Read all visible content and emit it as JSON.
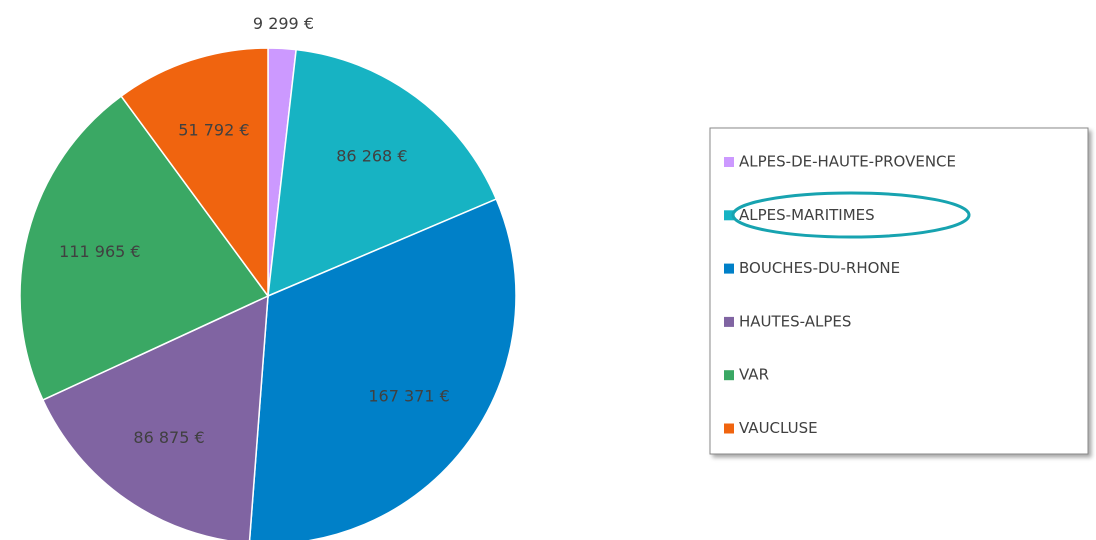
{
  "chart_data": {
    "type": "pie",
    "categories": [
      "ALPES-DE-HAUTE-PROVENCE",
      "ALPES-MARITIMES",
      "BOUCHES-DU-RHONE",
      "HAUTES-ALPES",
      "VAR",
      "VAUCLUSE"
    ],
    "values": [
      9299,
      86268,
      167371,
      86875,
      111965,
      51792
    ],
    "value_labels": [
      "9 299 €",
      "86 268 €",
      "167 371 €",
      "86 875 €",
      "111 965 €",
      "51 792 €"
    ],
    "colors": [
      "#cc99ff",
      "#17b3c3",
      "#0080c8",
      "#8064a2",
      "#3aa864",
      "#f0640f"
    ],
    "legend": "right"
  }
}
